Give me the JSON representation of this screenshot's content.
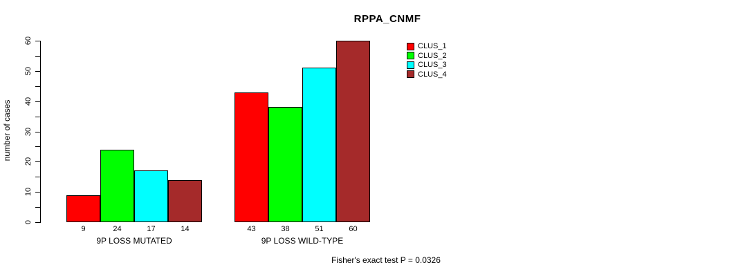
{
  "chart_data": {
    "type": "bar",
    "title": "RPPA_CNMF",
    "ylabel": "number of cases",
    "ylim": [
      0,
      60
    ],
    "ytick_step": 10,
    "minor_tick_step": 5,
    "ytick_labels": [
      "0",
      "10",
      "20",
      "30",
      "40",
      "50",
      "60"
    ],
    "grid": false,
    "legend_position": "top-right",
    "bar_border_color": "#000000",
    "categories": [
      "9P LOSS MUTATED",
      "9P LOSS WILD-TYPE"
    ],
    "series": [
      {
        "name": "CLUS_1",
        "color": "#ff0000",
        "values": [
          9,
          43
        ]
      },
      {
        "name": "CLUS_2",
        "color": "#00ff00",
        "values": [
          24,
          38
        ]
      },
      {
        "name": "CLUS_3",
        "color": "#00ffff",
        "values": [
          17,
          51
        ]
      },
      {
        "name": "CLUS_4",
        "color": "#a52a2a",
        "values": [
          14,
          60
        ]
      }
    ],
    "footnote": "Fisher's exact test P = 0.0326"
  }
}
